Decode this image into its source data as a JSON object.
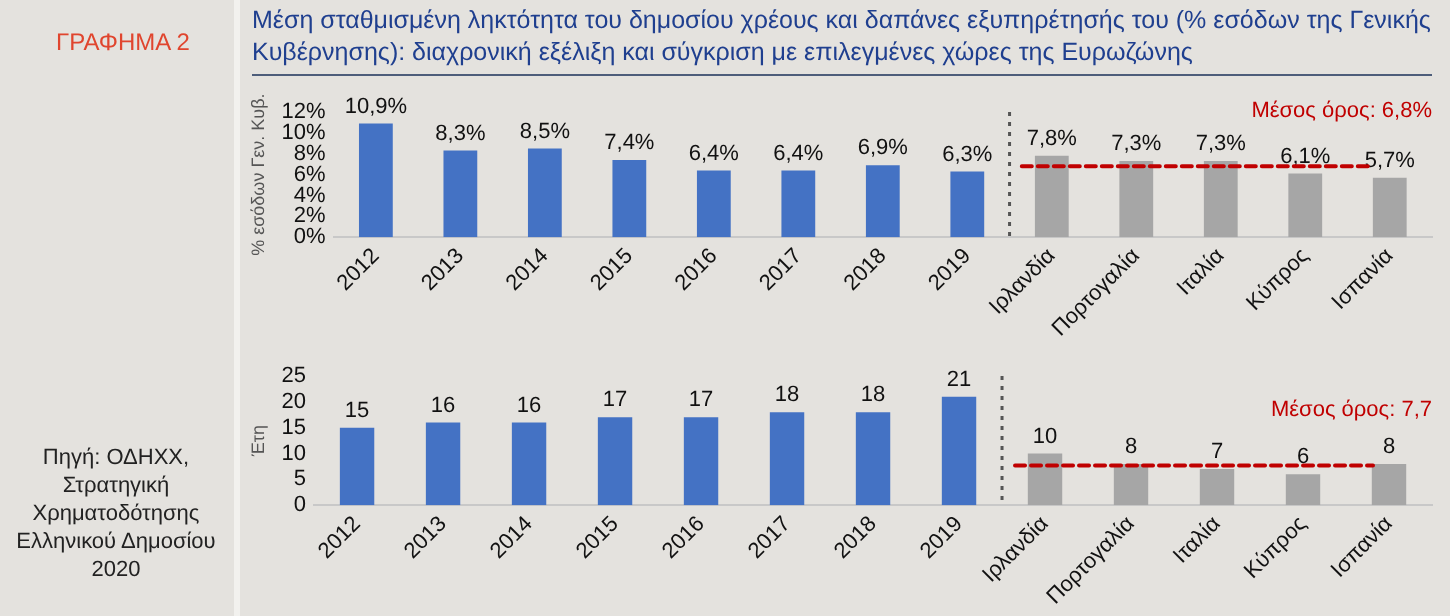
{
  "chart_data": [
    {
      "type": "bar",
      "title": "Μέση σταθμισμένη ληκτότητα του δημοσίου χρέους και δαπάνες εξυπηρέτησής του (% εσόδων της Γενικής Κυβέρνησης): διαχρονική εξέλιξη και σύγκριση με επιλεγμένες χώρες της Ευρωζώνης",
      "ylabel": "% εσόδων Γεν. Κυβ.",
      "annotations": [
        "ΓΡΑΦΗΜΑ 2"
      ],
      "categories": [
        "2012",
        "2013",
        "2014",
        "2015",
        "2016",
        "2017",
        "2018",
        "2019",
        "Ιρλανδία",
        "Πορτογαλία",
        "Ιταλία",
        "Κύπρος",
        "Ισπανία"
      ],
      "values": [
        10.9,
        8.3,
        8.5,
        7.4,
        6.4,
        6.4,
        6.9,
        6.3,
        7.8,
        7.3,
        7.3,
        6.1,
        5.7
      ],
      "value_labels": [
        "10,9%",
        "8,3%",
        "8,5%",
        "7,4%",
        "6,4%",
        "6,4%",
        "6,9%",
        "6,3%",
        "7,8%",
        "7,3%",
        "7,3%",
        "6,1%",
        "5,7%"
      ],
      "colors": [
        "#4472c4",
        "#4472c4",
        "#4472c4",
        "#4472c4",
        "#4472c4",
        "#4472c4",
        "#4472c4",
        "#4472c4",
        "#a6a6a6",
        "#a6a6a6",
        "#a6a6a6",
        "#a6a6a6",
        "#a6a6a6"
      ],
      "ylim": [
        0,
        12
      ],
      "yticks": [
        {
          "value": 0,
          "label": "0%"
        },
        {
          "value": 2,
          "label": "2%"
        },
        {
          "value": 4,
          "label": "4%"
        },
        {
          "value": 6,
          "label": "6%"
        },
        {
          "value": 8,
          "label": "8%"
        },
        {
          "value": 10,
          "label": "10%"
        },
        {
          "value": 12,
          "label": "12%"
        }
      ],
      "ref_lines": [
        {
          "axis": "y",
          "value": 6.8,
          "label": "Μέσος όρος: 6,8%",
          "color": "#c00000",
          "line_style": "dashed"
        }
      ],
      "grid": false,
      "legend": false
    },
    {
      "type": "bar",
      "ylabel": "Έτη",
      "annotations": [
        "Πηγή: ΟΔΗΧΧ, Στρατηγική Χρηματοδότησης Ελληνικού Δημοσίου 2020"
      ],
      "categories": [
        "2012",
        "2013",
        "2014",
        "2015",
        "2016",
        "2017",
        "2018",
        "2019",
        "Ιρλανδία",
        "Πορτογαλία",
        "Ιταλία",
        "Κύπρος",
        "Ισπανία"
      ],
      "values": [
        15,
        16,
        16,
        17,
        17,
        18,
        18,
        21,
        10,
        8,
        7,
        6,
        8
      ],
      "data_labels": true,
      "colors": [
        "#4472c4",
        "#4472c4",
        "#4472c4",
        "#4472c4",
        "#4472c4",
        "#4472c4",
        "#4472c4",
        "#4472c4",
        "#a6a6a6",
        "#a6a6a6",
        "#a6a6a6",
        "#a6a6a6",
        "#a6a6a6"
      ],
      "ylim": [
        0,
        25
      ],
      "yticks": [
        0,
        5,
        10,
        15,
        20,
        25
      ],
      "ref_lines": [
        {
          "axis": "y",
          "value": 7.7,
          "label": "Μέσος όρος: 7,7",
          "color": "#c00000",
          "line_style": "dashed"
        }
      ],
      "grid": false,
      "legend": false
    }
  ]
}
